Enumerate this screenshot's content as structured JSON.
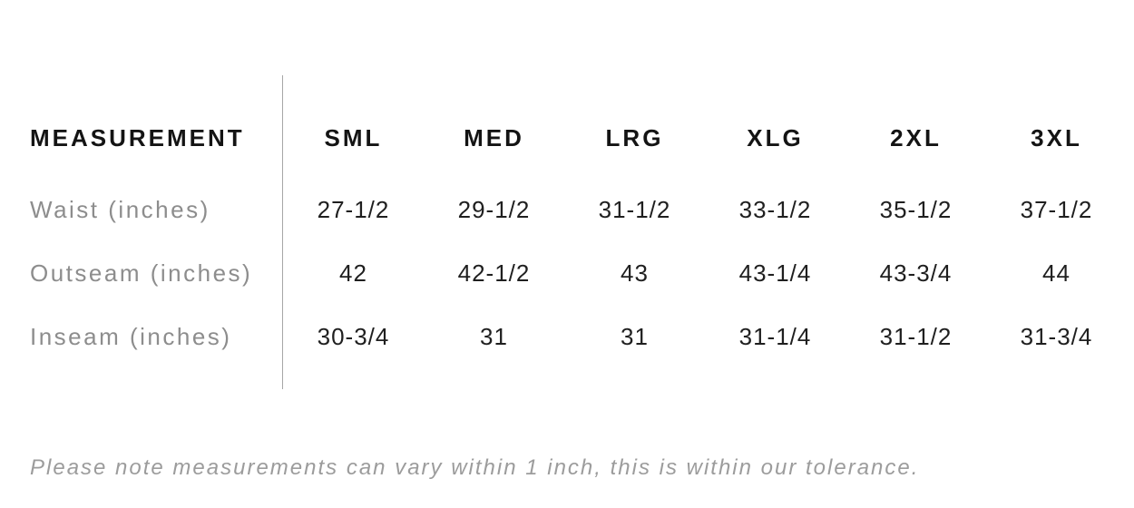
{
  "colors": {
    "background": "#ffffff",
    "header_text": "#141414",
    "label_text": "#8d8d8d",
    "value_text": "#1f1f1f",
    "note_text": "#9c9c9c",
    "divider": "#a6a6a6"
  },
  "table": {
    "header": [
      "MEASUREMENT",
      "SML",
      "MED",
      "LRG",
      "XLG",
      "2XL",
      "3XL"
    ],
    "rows": [
      [
        "Waist (inches)",
        "27-1/2",
        "29-1/2",
        "31-1/2",
        "33-1/2",
        "35-1/2",
        "37-1/2"
      ],
      [
        "Outseam (inches)",
        "42",
        "42-1/2",
        "43",
        "43-1/4",
        "43-3/4",
        "44"
      ],
      [
        "Inseam (inches)",
        "30-3/4",
        "31",
        "31",
        "31-1/4",
        "31-1/2",
        "31-3/4"
      ]
    ]
  },
  "note": "Please note measurements can vary within 1 inch, this is within our tolerance.",
  "chart_data": {
    "type": "table",
    "title": "",
    "columns": [
      "MEASUREMENT",
      "SML",
      "MED",
      "LRG",
      "XLG",
      "2XL",
      "3XL"
    ],
    "rows": [
      {
        "measurement": "Waist (inches)",
        "SML": "27-1/2",
        "MED": "29-1/2",
        "LRG": "31-1/2",
        "XLG": "33-1/2",
        "2XL": "35-1/2",
        "3XL": "37-1/2"
      },
      {
        "measurement": "Outseam (inches)",
        "SML": "42",
        "MED": "42-1/2",
        "LRG": "43",
        "XLG": "43-1/4",
        "2XL": "43-3/4",
        "3XL": "44"
      },
      {
        "measurement": "Inseam (inches)",
        "SML": "30-3/4",
        "MED": "31",
        "LRG": "31",
        "XLG": "31-1/4",
        "2XL": "31-1/2",
        "3XL": "31-3/4"
      }
    ],
    "footnote": "Please note measurements can vary within 1 inch, this is within our tolerance.",
    "layout": {
      "divider_after_first_column": true,
      "grid": "off"
    }
  }
}
